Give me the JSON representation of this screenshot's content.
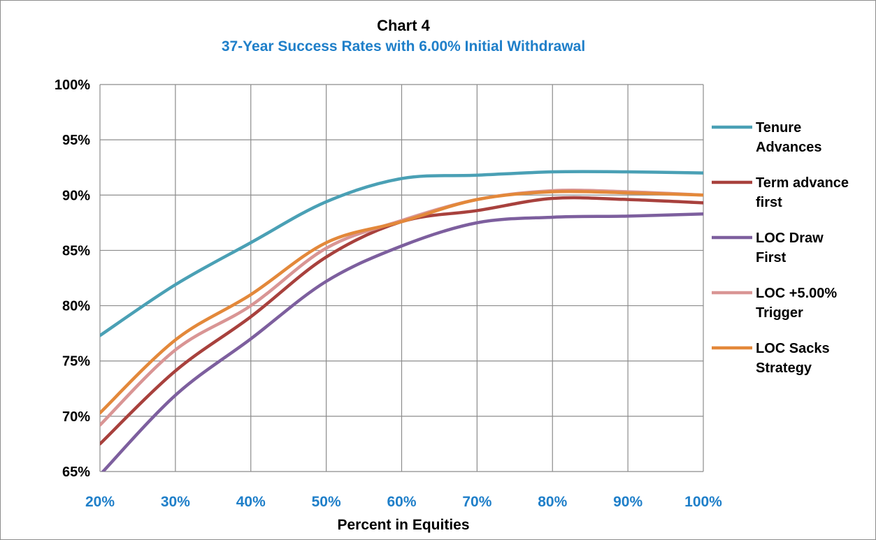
{
  "chart_data": {
    "type": "line",
    "title": "Chart 4",
    "subtitle": "37-Year Success Rates with 6.00% Initial Withdrawal",
    "xlabel": "Percent in Equities",
    "ylabel": "",
    "categories": [
      "20%",
      "30%",
      "40%",
      "50%",
      "60%",
      "70%",
      "80%",
      "90%",
      "100%"
    ],
    "x": [
      20,
      30,
      40,
      50,
      60,
      70,
      80,
      90,
      100
    ],
    "yticks": [
      "100%",
      "95%",
      "90%",
      "85%",
      "80%",
      "75%",
      "70%",
      "65%"
    ],
    "ylim": [
      65,
      100
    ],
    "grid": true,
    "legend_position": "right",
    "series": [
      {
        "name_lines": [
          "Tenure",
          "Advances"
        ],
        "name": "Tenure Advances",
        "color": "#4aa0b5",
        "values": [
          77.3,
          81.9,
          85.7,
          89.4,
          91.5,
          91.8,
          92.1,
          92.1,
          92.0
        ]
      },
      {
        "name_lines": [
          "Term advance",
          "first"
        ],
        "name": "Term advance first",
        "color": "#a8413d",
        "values": [
          67.5,
          74.1,
          79.0,
          84.4,
          87.6,
          88.6,
          89.7,
          89.6,
          89.3
        ]
      },
      {
        "name_lines": [
          "LOC Draw",
          "First"
        ],
        "name": "LOC Draw First",
        "color": "#7d5f9e",
        "values": [
          64.7,
          71.9,
          77.0,
          82.2,
          85.4,
          87.5,
          88.0,
          88.1,
          88.3
        ]
      },
      {
        "name_lines": [
          "LOC +5.00%",
          "Trigger"
        ],
        "name": "LOC +5.00% Trigger",
        "color": "#d99594",
        "values": [
          69.2,
          76.0,
          80.0,
          85.2,
          87.7,
          89.6,
          90.4,
          90.3,
          90.0
        ]
      },
      {
        "name_lines": [
          "LOC Sacks",
          "Strategy"
        ],
        "name": "LOC Sacks Strategy",
        "color": "#e3883a",
        "values": [
          70.3,
          76.9,
          81.0,
          85.7,
          87.6,
          89.6,
          90.3,
          90.2,
          90.0
        ]
      }
    ]
  }
}
